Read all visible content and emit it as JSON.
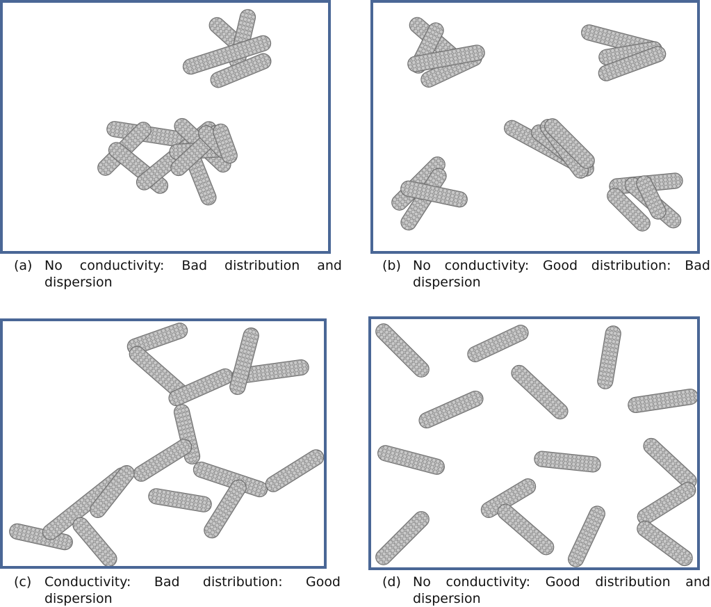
{
  "panels": [
    {
      "id": "a",
      "label": "(a)",
      "caption_line1": "No conductivity: Bad distribution and",
      "caption_line2": "dispersion",
      "tube_count": 14
    },
    {
      "id": "b",
      "label": "(b)",
      "caption_line1": "No conductivity: Good distribution: Bad",
      "caption_line2": "dispersion",
      "tube_count": 17
    },
    {
      "id": "c",
      "label": "(c)",
      "caption_line1": "Conductivity: Bad distribution: Good",
      "caption_line2": "dispersion",
      "tube_count": 18
    },
    {
      "id": "d",
      "label": "(d)",
      "caption_line1": "No conductivity: Good distribution and",
      "caption_line2": "dispersion",
      "tube_count": 17
    }
  ],
  "colors": {
    "frame": "#4a6796",
    "tube_fill": "#c9c9c9",
    "tube_stroke": "#6a6a6a",
    "tube_mesh": "#8a8a8a"
  }
}
